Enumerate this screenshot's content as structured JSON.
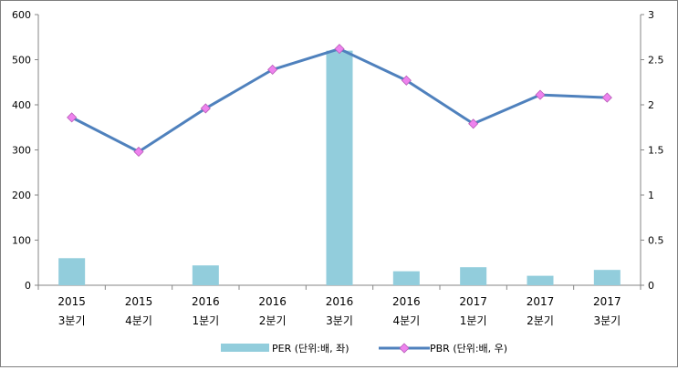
{
  "chart_data": {
    "type": "bar+line",
    "categories": [
      [
        "2015",
        "3분기"
      ],
      [
        "2015",
        "4분기"
      ],
      [
        "2016",
        "1분기"
      ],
      [
        "2016",
        "2분기"
      ],
      [
        "2016",
        "3분기"
      ],
      [
        "2016",
        "4분기"
      ],
      [
        "2017",
        "1분기"
      ],
      [
        "2017",
        "2분기"
      ],
      [
        "2017",
        "3분기"
      ]
    ],
    "series": [
      {
        "name": "PER (단위:배, 좌)",
        "kind": "bar",
        "axis": "left",
        "color": "#92cddc",
        "values": [
          60,
          null,
          44,
          null,
          520,
          31,
          40,
          21,
          34
        ]
      },
      {
        "name": "PBR (단위:배, 우)",
        "kind": "line",
        "axis": "right",
        "color": "#4f81bd",
        "marker_color": "#ee82ee",
        "values": [
          1.86,
          1.48,
          1.96,
          2.39,
          2.62,
          2.27,
          1.79,
          2.11,
          2.08
        ]
      }
    ],
    "y_left": {
      "min": 0,
      "max": 600,
      "ticks": [
        0,
        100,
        200,
        300,
        400,
        500,
        600
      ]
    },
    "y_right": {
      "min": 0,
      "max": 3,
      "ticks": [
        "0",
        "0.5",
        "1",
        "1.5",
        "2",
        "2.5",
        "3"
      ]
    },
    "grid": false,
    "legend_position": "bottom"
  }
}
